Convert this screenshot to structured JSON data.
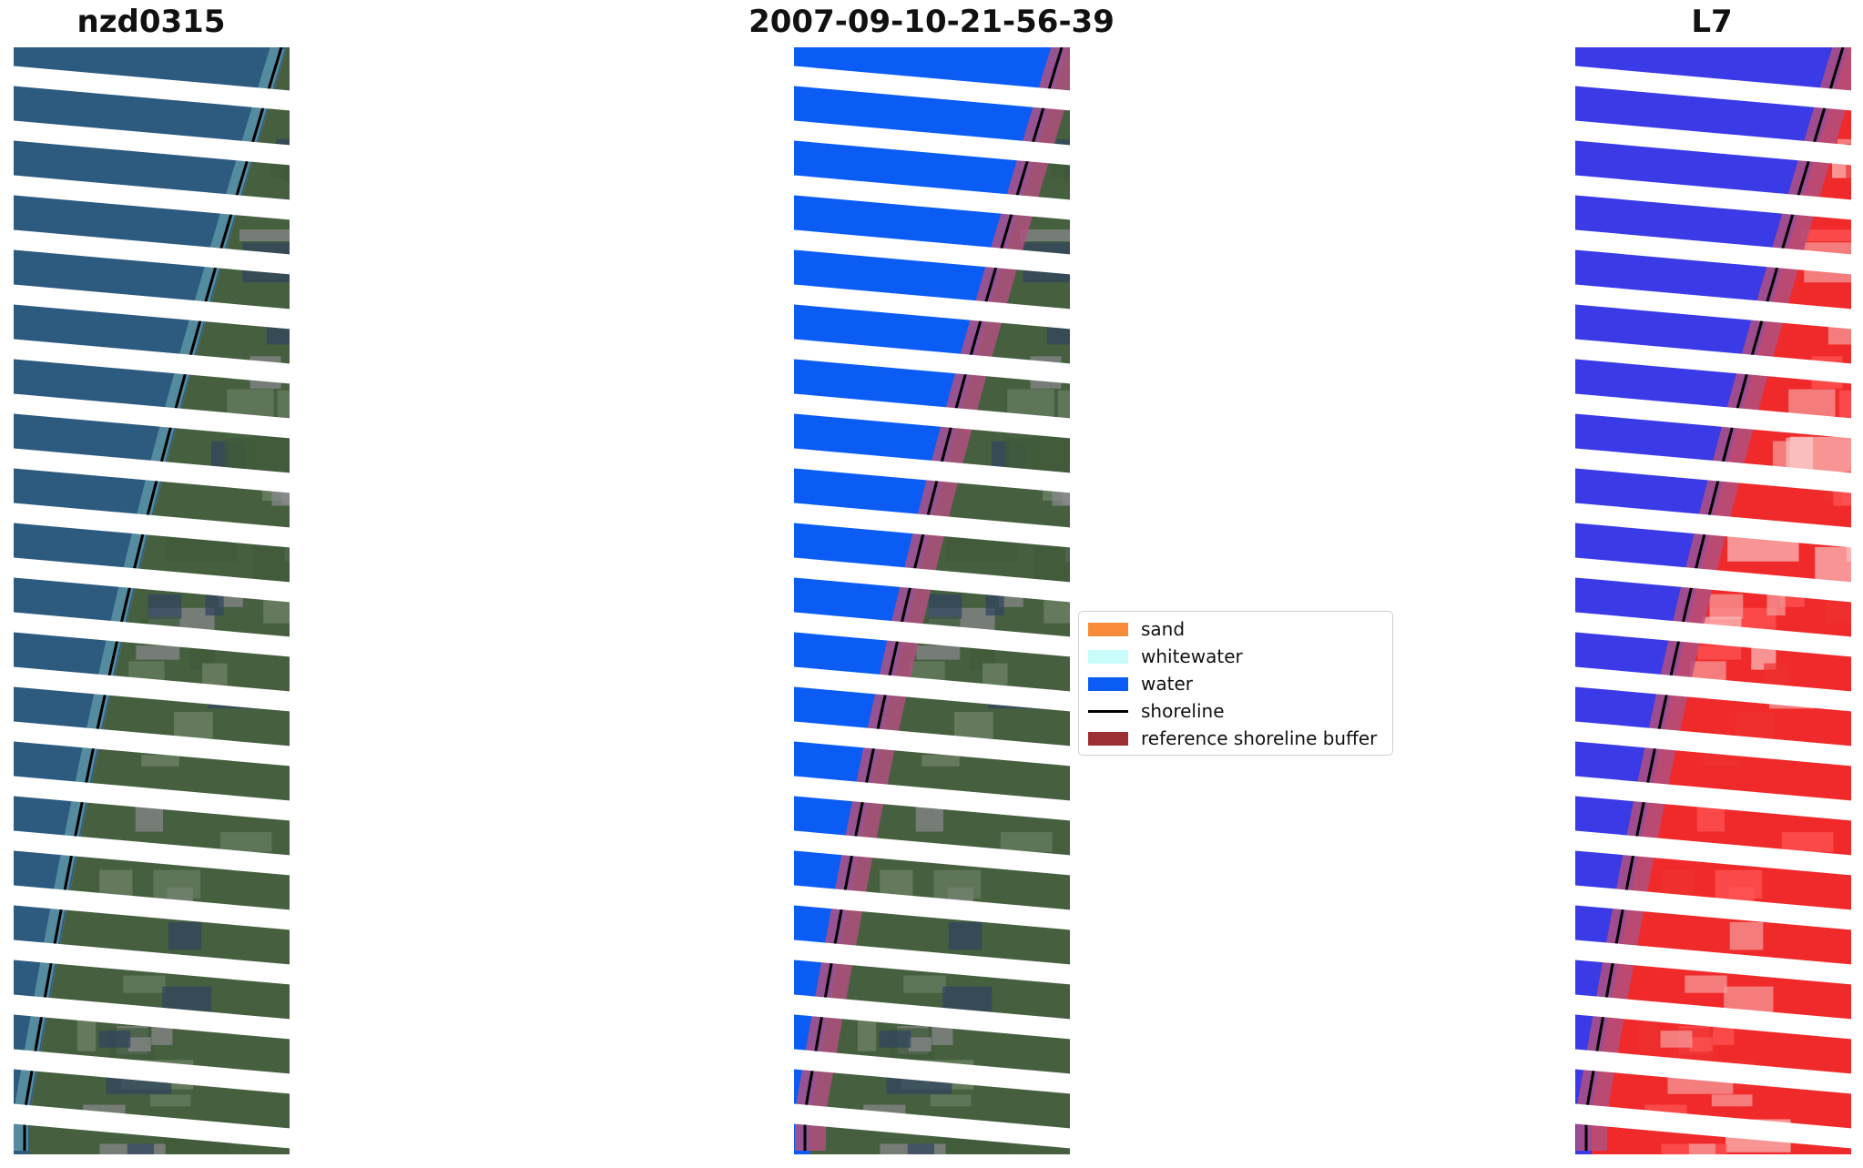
{
  "panels": [
    {
      "title": "nzd0315"
    },
    {
      "title": "2007-09-10-21-56-39"
    },
    {
      "title": "L7"
    }
  ],
  "legend": [
    {
      "label": "sand",
      "color": "#f98c3a",
      "kind": "patch"
    },
    {
      "label": "whitewater",
      "color": "#c8fdfb",
      "kind": "patch"
    },
    {
      "label": "water",
      "color": "#0a5cf5",
      "kind": "patch"
    },
    {
      "label": "shoreline",
      "color": "#000000",
      "kind": "line"
    },
    {
      "label": "reference shoreline buffer",
      "color": "#9b2f31",
      "kind": "patch"
    }
  ],
  "colors": {
    "ocean": "#2d5a7f",
    "land": "#46603f",
    "water_class": "#0a5cf5",
    "index_water": "#3a3ae6",
    "index_land": "#f02a2a",
    "buffer": "#b0507f",
    "gap": "#ffffff"
  }
}
